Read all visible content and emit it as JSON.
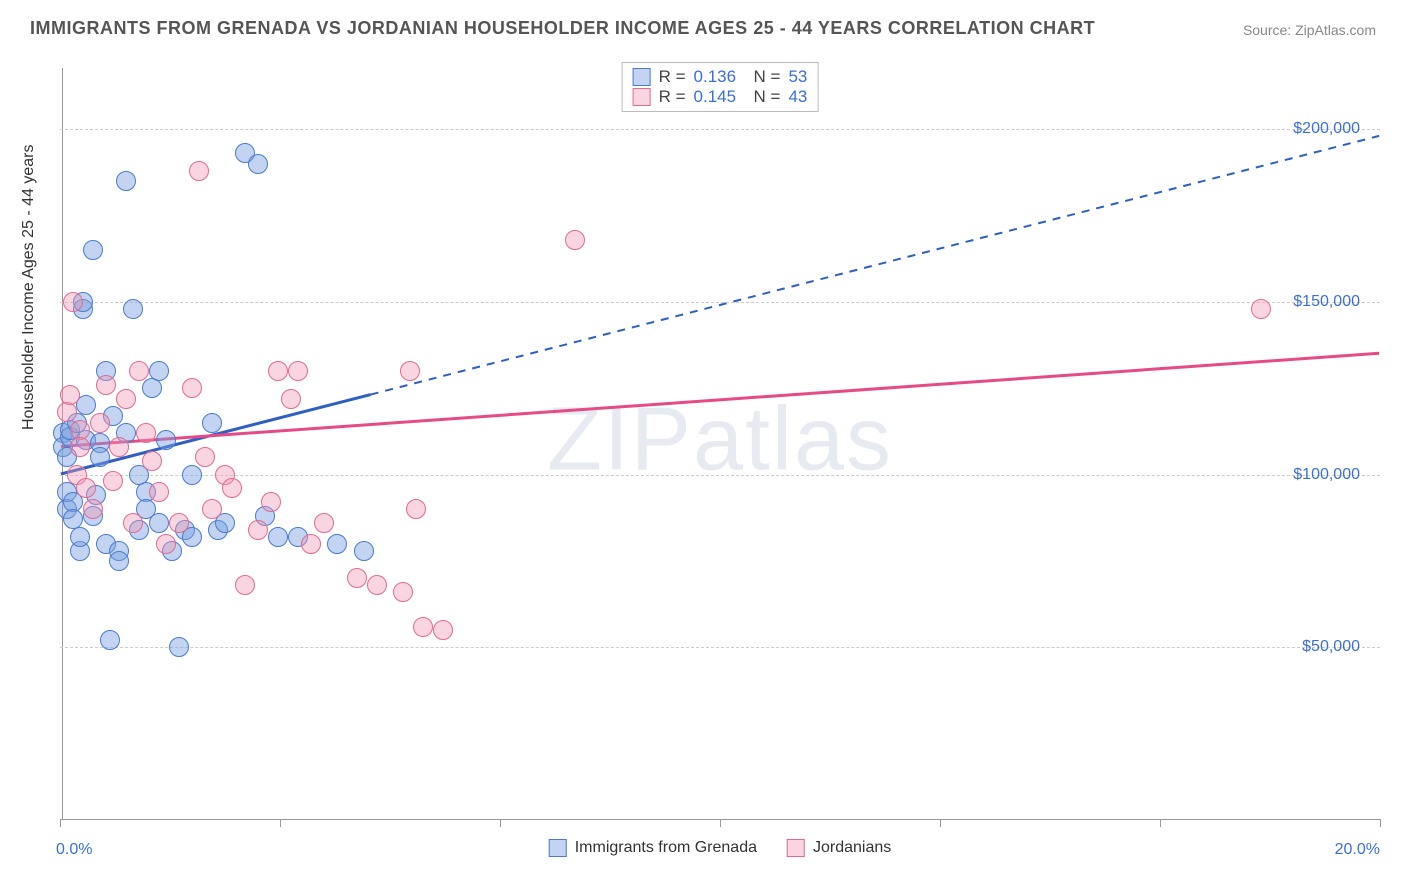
{
  "title": "IMMIGRANTS FROM GRENADA VS JORDANIAN HOUSEHOLDER INCOME AGES 25 - 44 YEARS CORRELATION CHART",
  "source": "Source: ZipAtlas.com",
  "ylabel": "Householder Income Ages 25 - 44 years",
  "watermark": "ZIPatlas",
  "chart": {
    "type": "scatter",
    "xlim": [
      0,
      20
    ],
    "ylim": [
      0,
      220000
    ],
    "xticks_minor": [
      0,
      3.33,
      6.67,
      10,
      13.33,
      16.67,
      20
    ],
    "yticks": [
      50000,
      100000,
      150000,
      200000
    ],
    "ytick_labels": [
      "$50,000",
      "$100,000",
      "$150,000",
      "$200,000"
    ],
    "xtick_labels": {
      "left": "0.0%",
      "right": "20.0%"
    },
    "background_color": "#ffffff",
    "grid_color": "#cccccc",
    "point_radius": 10,
    "series": [
      {
        "id": "grenada",
        "label": "Immigrants from Grenada",
        "R": "0.136",
        "N": "53",
        "fill": "rgba(120,160,225,0.45)",
        "stroke": "#4a7bd0",
        "line_color": "#2e5fc4",
        "trend": {
          "x1": 0,
          "y1": 100000,
          "x2": 20,
          "y2": 198000,
          "solid_until_x": 4.7
        },
        "points": [
          [
            0.05,
            112000
          ],
          [
            0.05,
            108000
          ],
          [
            0.1,
            90000
          ],
          [
            0.1,
            95000
          ],
          [
            0.1,
            105000
          ],
          [
            0.15,
            111000
          ],
          [
            0.15,
            113000
          ],
          [
            0.2,
            92000
          ],
          [
            0.2,
            87000
          ],
          [
            0.25,
            115000
          ],
          [
            0.3,
            78000
          ],
          [
            0.3,
            82000
          ],
          [
            0.35,
            148000
          ],
          [
            0.35,
            150000
          ],
          [
            0.4,
            120000
          ],
          [
            0.4,
            110000
          ],
          [
            0.5,
            165000
          ],
          [
            0.5,
            88000
          ],
          [
            0.55,
            94000
          ],
          [
            0.6,
            109000
          ],
          [
            0.6,
            105000
          ],
          [
            0.7,
            130000
          ],
          [
            0.7,
            80000
          ],
          [
            0.75,
            52000
          ],
          [
            0.8,
            117000
          ],
          [
            0.9,
            78000
          ],
          [
            0.9,
            75000
          ],
          [
            1.0,
            185000
          ],
          [
            1.0,
            112000
          ],
          [
            1.1,
            148000
          ],
          [
            1.2,
            84000
          ],
          [
            1.2,
            100000
          ],
          [
            1.3,
            95000
          ],
          [
            1.3,
            90000
          ],
          [
            1.4,
            125000
          ],
          [
            1.5,
            130000
          ],
          [
            1.5,
            86000
          ],
          [
            1.6,
            110000
          ],
          [
            1.7,
            78000
          ],
          [
            1.8,
            50000
          ],
          [
            1.9,
            84000
          ],
          [
            2.0,
            82000
          ],
          [
            2.0,
            100000
          ],
          [
            2.3,
            115000
          ],
          [
            2.4,
            84000
          ],
          [
            2.5,
            86000
          ],
          [
            2.8,
            193000
          ],
          [
            3.0,
            190000
          ],
          [
            3.1,
            88000
          ],
          [
            3.3,
            82000
          ],
          [
            3.6,
            82000
          ],
          [
            4.2,
            80000
          ],
          [
            4.6,
            78000
          ]
        ]
      },
      {
        "id": "jordanians",
        "label": "Jordanians",
        "R": "0.145",
        "N": "43",
        "fill": "rgba(240,150,180,0.40)",
        "stroke": "#e26a94",
        "line_color": "#e64b86",
        "trend": {
          "x1": 0,
          "y1": 108000,
          "x2": 20,
          "y2": 135000,
          "solid_until_x": 20
        },
        "points": [
          [
            0.1,
            118000
          ],
          [
            0.15,
            123000
          ],
          [
            0.2,
            150000
          ],
          [
            0.25,
            100000
          ],
          [
            0.3,
            113000
          ],
          [
            0.3,
            108000
          ],
          [
            0.4,
            96000
          ],
          [
            0.5,
            90000
          ],
          [
            0.6,
            115000
          ],
          [
            0.7,
            126000
          ],
          [
            0.8,
            98000
          ],
          [
            0.9,
            108000
          ],
          [
            1.0,
            122000
          ],
          [
            1.1,
            86000
          ],
          [
            1.2,
            130000
          ],
          [
            1.3,
            112000
          ],
          [
            1.4,
            104000
          ],
          [
            1.5,
            95000
          ],
          [
            1.6,
            80000
          ],
          [
            1.8,
            86000
          ],
          [
            2.0,
            125000
          ],
          [
            2.1,
            188000
          ],
          [
            2.2,
            105000
          ],
          [
            2.3,
            90000
          ],
          [
            2.5,
            100000
          ],
          [
            2.6,
            96000
          ],
          [
            2.8,
            68000
          ],
          [
            3.0,
            84000
          ],
          [
            3.2,
            92000
          ],
          [
            3.3,
            130000
          ],
          [
            3.5,
            122000
          ],
          [
            3.6,
            130000
          ],
          [
            3.8,
            80000
          ],
          [
            4.0,
            86000
          ],
          [
            4.5,
            70000
          ],
          [
            4.8,
            68000
          ],
          [
            5.2,
            66000
          ],
          [
            5.3,
            130000
          ],
          [
            5.4,
            90000
          ],
          [
            5.5,
            56000
          ],
          [
            5.8,
            55000
          ],
          [
            7.8,
            168000
          ],
          [
            18.2,
            148000
          ]
        ]
      }
    ]
  }
}
